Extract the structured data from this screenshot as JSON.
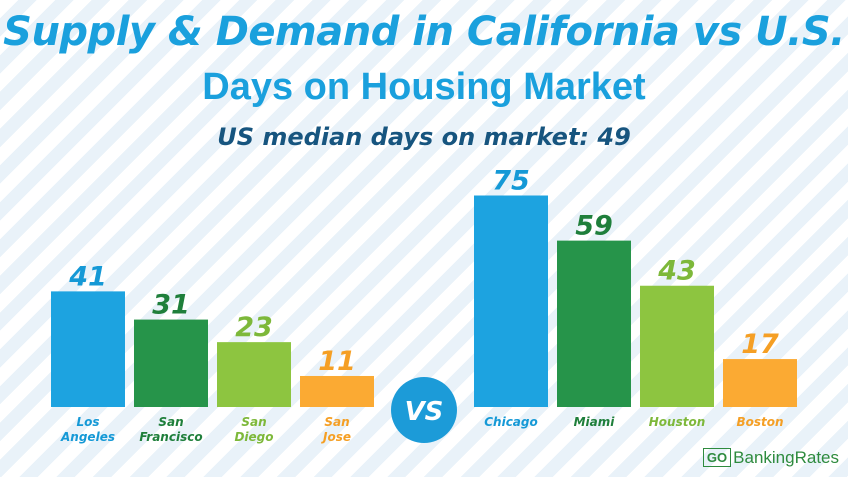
{
  "title": "Supply & Demand in California vs U.S.",
  "subtitle": "Days on Housing Market",
  "median_note": "US median days on market: 49",
  "vs_label": "VS",
  "logo": {
    "go": "GO",
    "name": "BankingRates"
  },
  "colors": {
    "blue": "#1da3e0",
    "dark_green": "#26944a",
    "light_green": "#8dc540",
    "orange": "#fbaa33",
    "label_blue": "#1599d6",
    "label_dark_green": "#1f7f3b",
    "label_light_green": "#7db83a",
    "label_orange": "#f59f24",
    "vs_circle": "#1c9bd8"
  },
  "chart_data": {
    "type": "bar",
    "ylabel": "",
    "xlabel": "",
    "groups": [
      {
        "name": "California",
        "categories": [
          "Los Angeles",
          "San Francisco",
          "San Diego",
          "San Jose"
        ],
        "values": [
          41,
          31,
          23,
          11
        ]
      },
      {
        "name": "U.S.",
        "categories": [
          "Chicago",
          "Miami",
          "Houston",
          "Boston"
        ],
        "values": [
          75,
          59,
          43,
          17
        ]
      }
    ],
    "bar_colors": [
      "blue",
      "dark_green",
      "light_green",
      "orange"
    ]
  }
}
